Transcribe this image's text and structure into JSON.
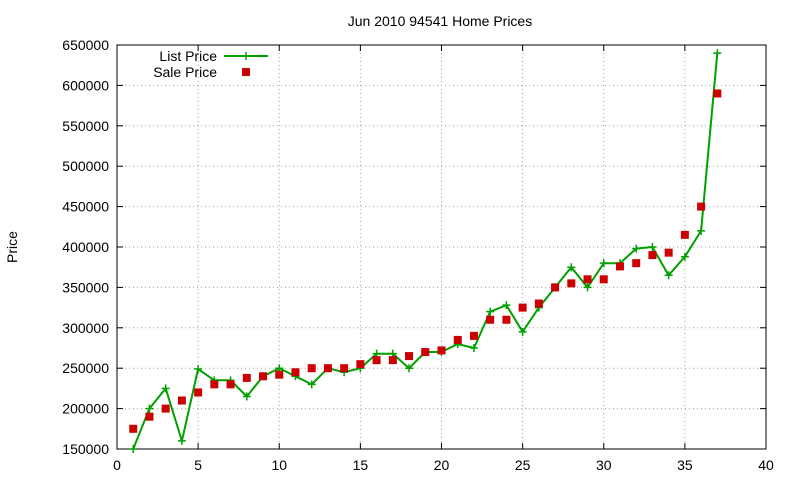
{
  "chart_data": {
    "type": "line",
    "title": "Jun 2010 94541 Home Prices",
    "xlabel": "",
    "ylabel": "Price",
    "xlim": [
      0,
      40
    ],
    "ylim": [
      150000,
      650000
    ],
    "xticks": [
      "0",
      "5",
      "10",
      "15",
      "20",
      "25",
      "30",
      "35",
      "40"
    ],
    "yticks": [
      "150000",
      "200000",
      "250000",
      "300000",
      "350000",
      "400000",
      "450000",
      "500000",
      "550000",
      "600000",
      "650000"
    ],
    "grid": true,
    "legend_position": "top-left",
    "series": [
      {
        "name": "List Price",
        "style": "line-with-plus-markers",
        "color": "#00a000",
        "x": [
          1,
          2,
          3,
          4,
          5,
          6,
          7,
          8,
          9,
          10,
          11,
          12,
          13,
          14,
          15,
          16,
          17,
          18,
          19,
          20,
          21,
          22,
          23,
          24,
          25,
          26,
          27,
          28,
          29,
          30,
          31,
          32,
          33,
          34,
          35,
          36,
          37
        ],
        "y": [
          150000,
          200000,
          225000,
          160000,
          249000,
          235000,
          235000,
          215000,
          240000,
          250000,
          240000,
          230000,
          250000,
          245000,
          250000,
          268000,
          268000,
          250000,
          270000,
          270000,
          280000,
          275000,
          320000,
          328000,
          295000,
          325000,
          350000,
          375000,
          350000,
          380000,
          380000,
          398000,
          400000,
          365000,
          388000,
          420000,
          640000
        ]
      },
      {
        "name": "Sale Price",
        "style": "square-markers",
        "color": "#cc0000",
        "x": [
          1,
          2,
          3,
          4,
          5,
          6,
          7,
          8,
          9,
          10,
          11,
          12,
          13,
          14,
          15,
          16,
          17,
          18,
          19,
          20,
          21,
          22,
          23,
          24,
          25,
          26,
          27,
          28,
          29,
          30,
          31,
          32,
          33,
          34,
          35,
          36,
          37
        ],
        "y": [
          175000,
          190000,
          200000,
          210000,
          220000,
          230000,
          230000,
          238000,
          240000,
          242000,
          245000,
          250000,
          250000,
          250000,
          255000,
          260000,
          260000,
          265000,
          270000,
          272000,
          285000,
          290000,
          310000,
          310000,
          325000,
          330000,
          350000,
          355000,
          360000,
          360000,
          376000,
          380000,
          390000,
          393000,
          415000,
          450000,
          590000
        ]
      }
    ]
  }
}
